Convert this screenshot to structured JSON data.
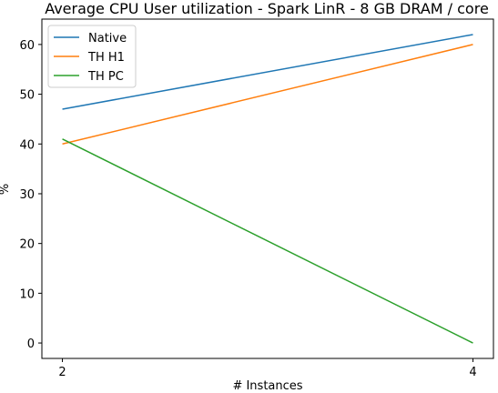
{
  "chart_data": {
    "type": "line",
    "title": "Average CPU User utilization - Spark LinR - 8 GB DRAM / core",
    "xlabel": "# Instances",
    "ylabel": "%",
    "x": [
      2,
      4
    ],
    "xlim": [
      1.9,
      4.1
    ],
    "ylim": [
      -3.1,
      65.1
    ],
    "xticks": [
      2,
      4
    ],
    "yticks": [
      0,
      10,
      20,
      30,
      40,
      50,
      60
    ],
    "grid": false,
    "legend_position": "top-left",
    "series": [
      {
        "name": "Native",
        "color": "#1f77b4",
        "values": [
          47,
          62
        ]
      },
      {
        "name": "TH H1",
        "color": "#ff7f0e",
        "values": [
          40,
          60
        ]
      },
      {
        "name": "TH PC",
        "color": "#2ca02c",
        "values": [
          41,
          0
        ]
      }
    ]
  }
}
